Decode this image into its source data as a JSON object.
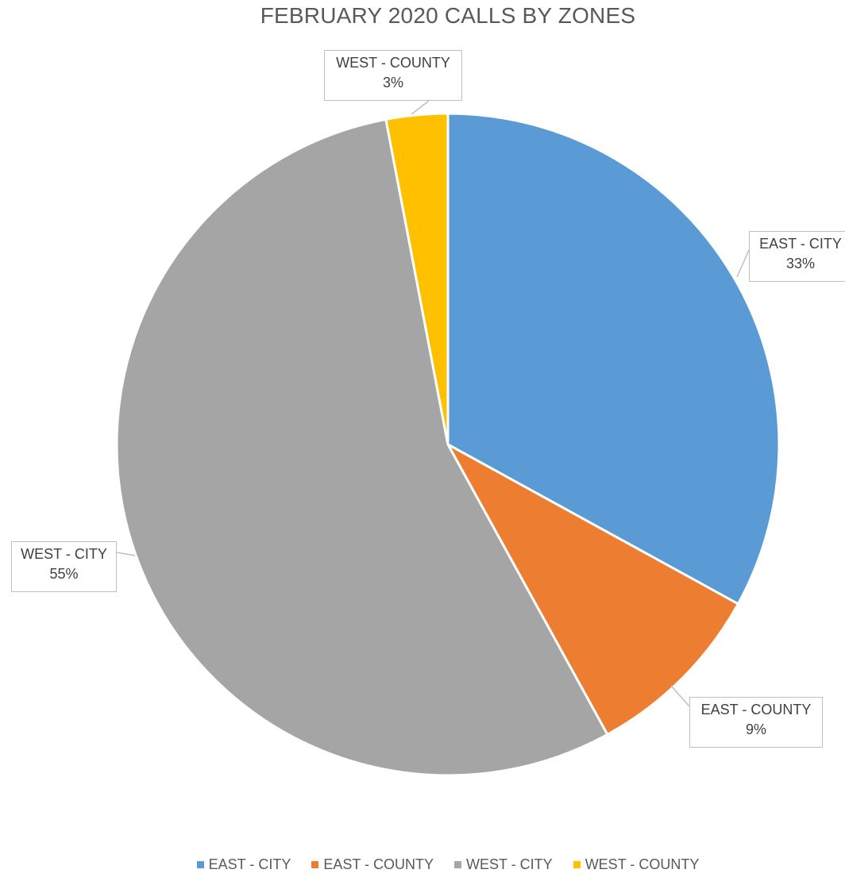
{
  "chart_data": {
    "type": "pie",
    "title": "FEBRUARY 2020 CALLS BY ZONES",
    "slices": [
      {
        "label": "EAST - CITY",
        "value": 33,
        "value_label": "33%",
        "color": "#5B9BD5"
      },
      {
        "label": "EAST - COUNTY",
        "value": 9,
        "value_label": "9%",
        "color": "#ED7D31"
      },
      {
        "label": "WEST - CITY",
        "value": 55,
        "value_label": "55%",
        "color": "#A5A5A5"
      },
      {
        "label": "WEST - COUNTY",
        "value": 3,
        "value_label": "3%",
        "color": "#FFC000"
      }
    ],
    "legend_position": "bottom",
    "data_labels": "callouts"
  }
}
